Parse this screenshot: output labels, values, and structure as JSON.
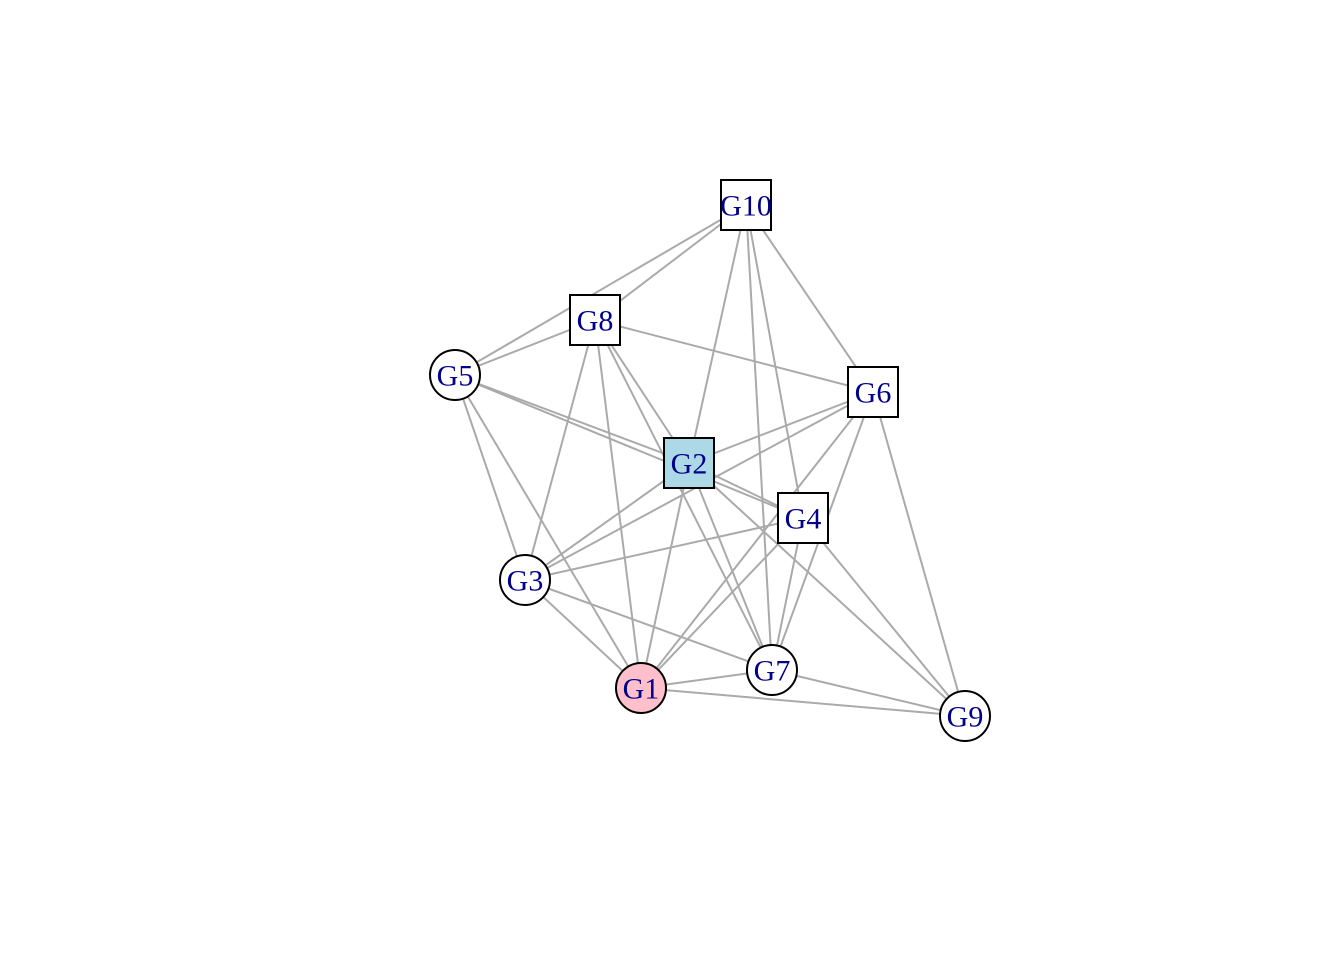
{
  "network": {
    "nodes": [
      {
        "id": "G1",
        "label": "G1",
        "shape": "circle",
        "fill": "#ffc0cb"
      },
      {
        "id": "G2",
        "label": "G2",
        "shape": "square",
        "fill": "#add8e6"
      },
      {
        "id": "G3",
        "label": "G3",
        "shape": "circle",
        "fill": "#ffffff"
      },
      {
        "id": "G4",
        "label": "G4",
        "shape": "square",
        "fill": "#ffffff"
      },
      {
        "id": "G5",
        "label": "G5",
        "shape": "circle",
        "fill": "#ffffff"
      },
      {
        "id": "G6",
        "label": "G6",
        "shape": "square",
        "fill": "#ffffff"
      },
      {
        "id": "G7",
        "label": "G7",
        "shape": "circle",
        "fill": "#ffffff"
      },
      {
        "id": "G8",
        "label": "G8",
        "shape": "square",
        "fill": "#ffffff"
      },
      {
        "id": "G9",
        "label": "G9",
        "shape": "circle",
        "fill": "#ffffff"
      },
      {
        "id": "G10",
        "label": "G10",
        "shape": "square",
        "fill": "#ffffff"
      }
    ],
    "edges": [
      [
        "G10",
        "G5"
      ],
      [
        "G10",
        "G8"
      ],
      [
        "G10",
        "G2"
      ],
      [
        "G10",
        "G7"
      ],
      [
        "G10",
        "G4"
      ],
      [
        "G10",
        "G6"
      ],
      [
        "G8",
        "G5"
      ],
      [
        "G8",
        "G6"
      ],
      [
        "G8",
        "G2"
      ],
      [
        "G8",
        "G3"
      ],
      [
        "G8",
        "G1"
      ],
      [
        "G8",
        "G7"
      ],
      [
        "G5",
        "G2"
      ],
      [
        "G5",
        "G4"
      ],
      [
        "G5",
        "G3"
      ],
      [
        "G5",
        "G1"
      ],
      [
        "G6",
        "G2"
      ],
      [
        "G6",
        "G3"
      ],
      [
        "G6",
        "G1"
      ],
      [
        "G6",
        "G7"
      ],
      [
        "G6",
        "G9"
      ],
      [
        "G2",
        "G3"
      ],
      [
        "G2",
        "G1"
      ],
      [
        "G2",
        "G7"
      ],
      [
        "G2",
        "G9"
      ],
      [
        "G2",
        "G4"
      ],
      [
        "G4",
        "G3"
      ],
      [
        "G4",
        "G1"
      ],
      [
        "G4",
        "G7"
      ],
      [
        "G4",
        "G9"
      ],
      [
        "G3",
        "G1"
      ],
      [
        "G3",
        "G7"
      ],
      [
        "G1",
        "G7"
      ],
      [
        "G1",
        "G9"
      ],
      [
        "G7",
        "G9"
      ]
    ],
    "colors": {
      "edge": "#aaaaaa",
      "label": "#00008b",
      "border": "#000000"
    }
  }
}
